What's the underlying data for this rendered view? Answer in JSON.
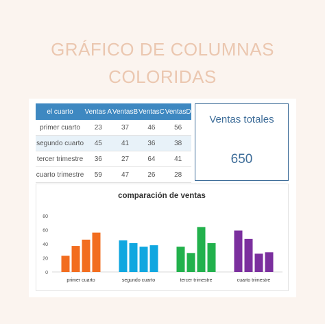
{
  "page": {
    "title_line1": "GRÁFICO DE COLUMNAS",
    "title_line2": "COLORIDAS"
  },
  "table": {
    "headers": [
      "el cuarto",
      "Ventas A",
      "VentasB",
      "VentasC",
      "VentasD"
    ],
    "rows": [
      [
        "primer cuarto",
        "23",
        "37",
        "46",
        "56"
      ],
      [
        "segundo cuarto",
        "45",
        "41",
        "36",
        "38"
      ],
      [
        "tercer trimestre",
        "36",
        "27",
        "64",
        "41"
      ],
      [
        "cuarto trimestre",
        "59",
        "47",
        "26",
        "28"
      ]
    ]
  },
  "summary": {
    "label": "Ventas totales",
    "value": "650"
  },
  "colors": {
    "header_blue": "#3e88c1",
    "title_peach": "#ebc7b0",
    "accent_dark_blue": "#3e6d99",
    "group_colors": [
      "#f26d1f",
      "#10a7e0",
      "#22b14c",
      "#7b2f9e"
    ]
  },
  "chart_data": {
    "type": "bar",
    "title": "comparación de ventas",
    "categories": [
      "primer cuarto",
      "segundo cuarto",
      "tercer trimestre",
      "cuarto trimestre"
    ],
    "series": [
      {
        "values": [
          23,
          45,
          36,
          59
        ]
      },
      {
        "values": [
          37,
          41,
          27,
          47
        ]
      },
      {
        "values": [
          46,
          36,
          64,
          26
        ]
      },
      {
        "values": [
          56,
          38,
          41,
          28
        ]
      }
    ],
    "ylim": [
      0,
      80
    ],
    "yticks": [
      "0",
      "20",
      "40",
      "60",
      "80"
    ],
    "grid": false,
    "legend": "none"
  }
}
